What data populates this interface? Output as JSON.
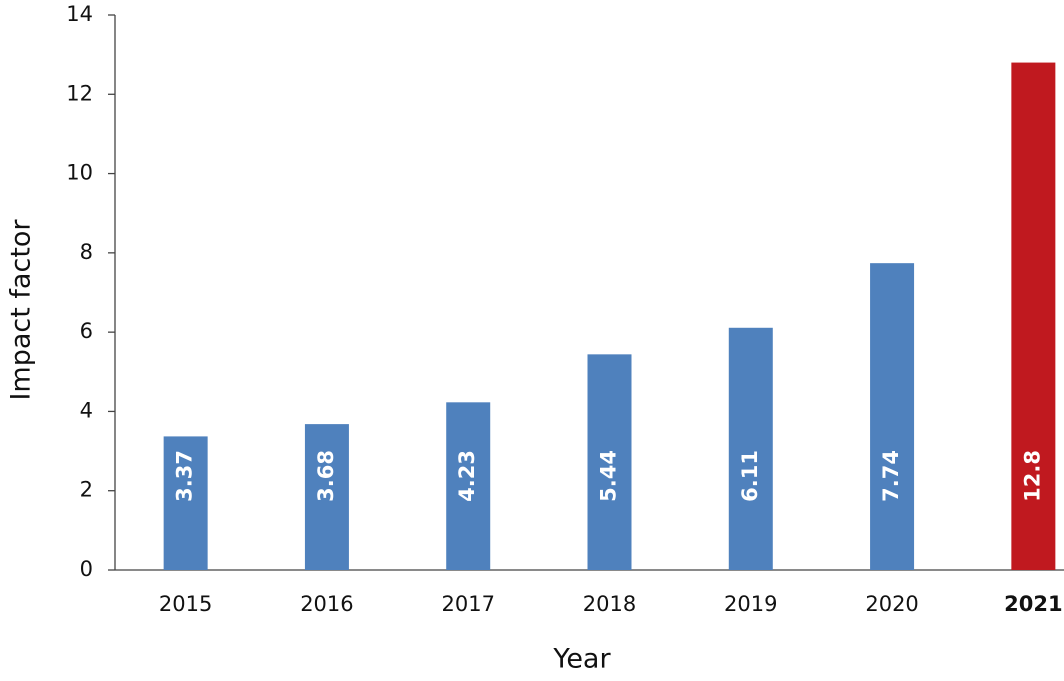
{
  "chart_data": {
    "type": "bar",
    "x_label": "Year",
    "y_label": "Impact factor",
    "categories": [
      "2015",
      "2016",
      "2017",
      "2018",
      "2019",
      "2020",
      "2021"
    ],
    "values": [
      3.37,
      3.68,
      4.23,
      5.44,
      6.11,
      7.74,
      12.8
    ],
    "color": "#4f81bd",
    "highlight_color": "#c0191f",
    "highlight_index": 6,
    "ylim": [
      0,
      14
    ],
    "yticks": [
      0,
      2,
      4,
      6,
      8,
      10,
      12,
      14
    ],
    "grid": false
  }
}
